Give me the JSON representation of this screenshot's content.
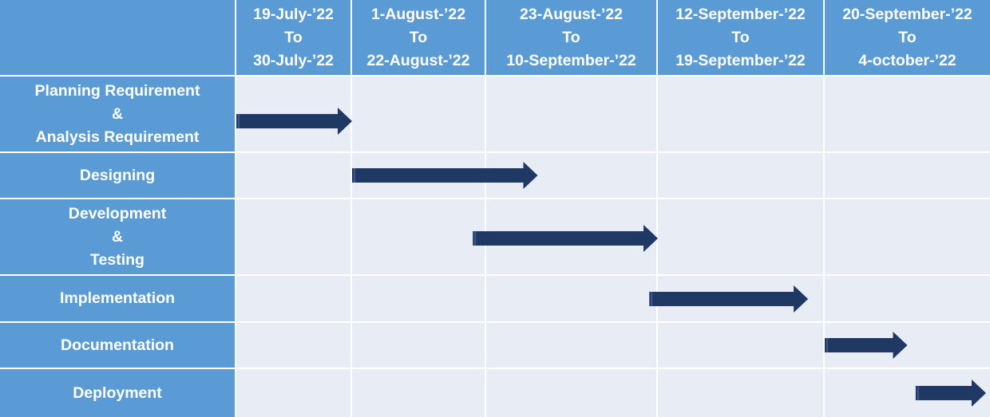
{
  "header_periods": [
    "19-July-’22\nTo\n30-July-’22",
    "1-August-’22\nTo\n22-August-’22",
    "23-August-’22\nTo\n10-September-’22",
    "12-September-’22\nTo\n19-September-’22",
    "20-September-’22\nTo\n4-october-’22"
  ],
  "tasks": [
    {
      "label": "Planning Requirement\n&\nAnalysis Requirement",
      "start_period": 0.0,
      "end_period": 1.0
    },
    {
      "label": "Designing",
      "start_period": 1.0,
      "end_period": 2.3
    },
    {
      "label": "Development\n&\nTesting",
      "start_period": 1.9,
      "end_period": 3.0
    },
    {
      "label": "Implementation",
      "start_period": 2.95,
      "end_period": 3.9
    },
    {
      "label": "Documentation",
      "start_period": 4.0,
      "end_period": 4.5
    },
    {
      "label": "Deployment",
      "start_period": 4.55,
      "end_period": 5.0
    }
  ],
  "colors": {
    "header_fill": "#5b9bd5",
    "cell_fill": "#e8edf5",
    "arrow_fill": "#203864",
    "text": "#ffffff"
  }
}
